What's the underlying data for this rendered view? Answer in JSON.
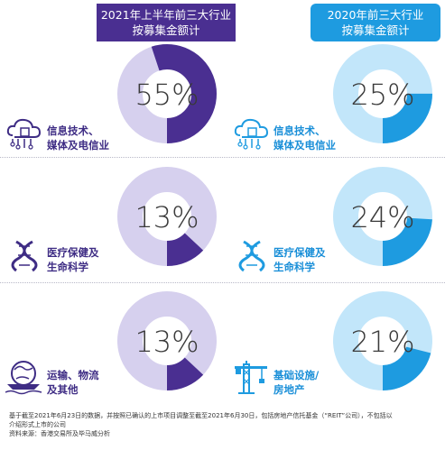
{
  "headers": {
    "left": [
      "2021年上半年前三大行业",
      "按募集金额计"
    ],
    "right": [
      "2020年前三大行业",
      "按募集金额计"
    ]
  },
  "labels": {
    "left": [
      [
        "信息技术、",
        "媒体及电信业"
      ],
      [
        "医疗保健及",
        "生命科学"
      ],
      [
        "运输、物流",
        "及其他"
      ]
    ],
    "right": [
      [
        "信息技术、",
        "媒体及电信业"
      ],
      [
        "医疗保健及",
        "生命科学"
      ],
      [
        "基础设施/",
        "房地产"
      ]
    ]
  },
  "icons": {
    "left": [
      "cloud-circuit-icon",
      "dna-icon",
      "globe-ship-icon"
    ],
    "right": [
      "cloud-circuit-icon",
      "dna-icon",
      "crane-icon"
    ]
  },
  "chart_data": [
    {
      "type": "pie",
      "title": "2021年上半年前三大行业 按募集金额计",
      "categories": [
        "信息技术、媒体及电信业",
        "医疗保健及生命科学",
        "运输、物流及其他"
      ],
      "values": [
        55,
        13,
        13
      ],
      "value_labels": [
        "55%",
        "13%",
        "13%"
      ]
    },
    {
      "type": "pie",
      "title": "2020年前三大行业 按募集金额计",
      "categories": [
        "信息技术、媒体及电信业",
        "医疗保健及生命科学",
        "基础设施/房地产"
      ],
      "values": [
        25,
        24,
        21
      ],
      "value_labels": [
        "25%",
        "24%",
        "21%"
      ]
    }
  ],
  "colors": {
    "left_fill": "#4a2f91",
    "left_track": "#d6d0ee",
    "right_fill": "#1e9be0",
    "right_track": "#c2e6fa",
    "text": "#3a3a3a"
  },
  "footnote": [
    "基于截至2021年6月23日的数据，并按照已确认的上市项目调整至截至2021年6月30日，包括房地产信托基金（“REIT”公司），不包括以",
    "介绍形式上市的公司",
    "资料来源：香港交易所及毕马威分析"
  ]
}
